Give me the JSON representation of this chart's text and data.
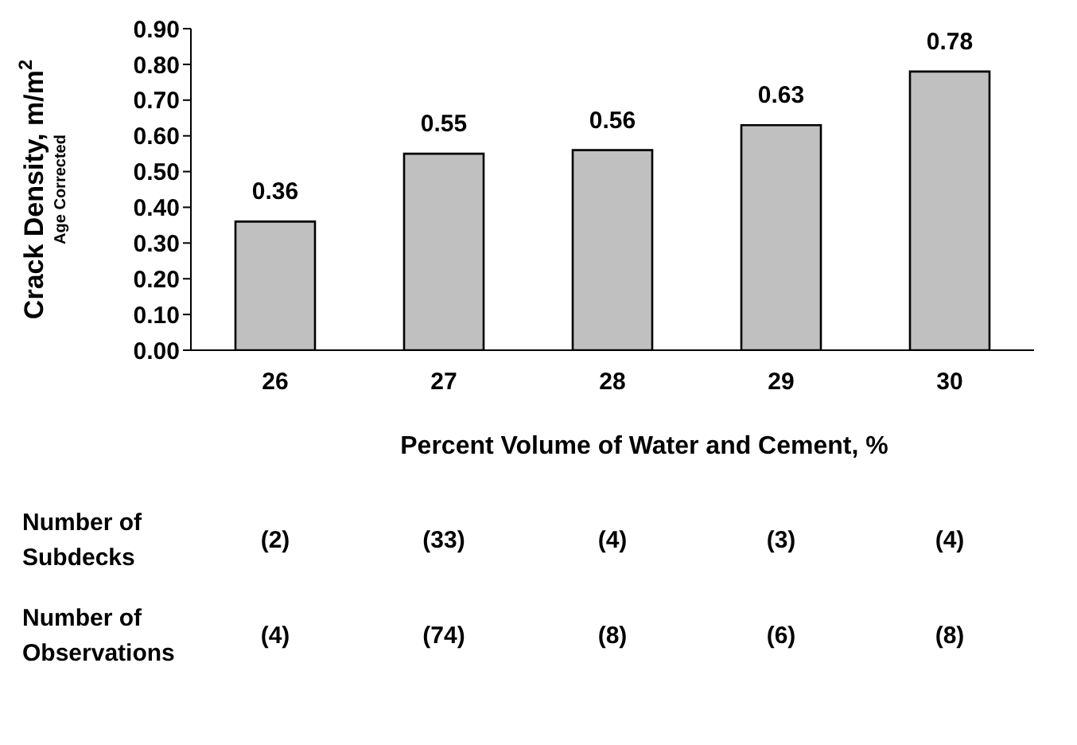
{
  "chart_data": {
    "type": "bar",
    "xlabel": "Percent Volume of Water and Cement, %",
    "ylabel": "Crack Density, m/m$^{2}$\nAge Corrected",
    "categories": [
      "26",
      "27",
      "28",
      "29",
      "30"
    ],
    "values": [
      0.36,
      0.55,
      0.56,
      0.63,
      0.78
    ],
    "color": "#c0c0c0",
    "data_labels": true,
    "grid": false,
    "legend": false,
    "ylim": [
      0,
      0.9
    ],
    "yticks": [
      {
        "value": 0,
        "label": "0.00"
      },
      {
        "value": 0.1,
        "label": "0.10"
      },
      {
        "value": 0.2,
        "label": "0.20"
      },
      {
        "value": 0.3,
        "label": "0.30"
      },
      {
        "value": 0.4,
        "label": "0.40"
      },
      {
        "value": 0.5,
        "label": "0.50"
      },
      {
        "value": 0.6,
        "label": "0.60"
      },
      {
        "value": 0.7,
        "label": "0.70"
      },
      {
        "value": 0.8,
        "label": "0.80"
      },
      {
        "value": 0.9,
        "label": "0.90"
      }
    ],
    "annotations": [
      "Number of Subdecks",
      "(2)",
      "(33)",
      "(4)",
      "(3)",
      "(4)",
      "Number of Observations",
      "(4)",
      "(74)",
      "(8)",
      "(6)",
      "(8)"
    ]
  }
}
